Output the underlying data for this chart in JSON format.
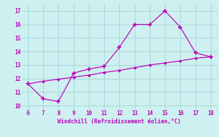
{
  "xlabel": "Windchill (Refroidissement éolien,°C)",
  "bg_color": "#cff0f0",
  "grid_color": "#a8dada",
  "line_color": "#bb00bb",
  "curve_x": [
    6,
    7,
    8,
    9,
    10,
    11,
    12,
    13,
    14,
    15,
    16,
    17,
    18
  ],
  "curve_y": [
    11.6,
    10.5,
    10.3,
    12.4,
    12.7,
    12.9,
    14.3,
    16.0,
    16.0,
    17.0,
    15.8,
    13.9,
    13.6
  ],
  "trend_x": [
    6,
    7,
    8,
    9,
    10,
    11,
    12,
    13,
    14,
    15,
    16,
    17,
    18
  ],
  "trend_y": [
    11.6,
    11.8,
    11.95,
    12.1,
    12.25,
    12.45,
    12.6,
    12.8,
    13.0,
    13.15,
    13.3,
    13.5,
    13.6
  ],
  "xlim": [
    5.6,
    18.4
  ],
  "ylim": [
    9.7,
    17.5
  ],
  "xticks": [
    6,
    7,
    8,
    9,
    10,
    11,
    12,
    13,
    14,
    15,
    16,
    17,
    18
  ],
  "yticks": [
    10,
    11,
    12,
    13,
    14,
    15,
    16,
    17
  ]
}
